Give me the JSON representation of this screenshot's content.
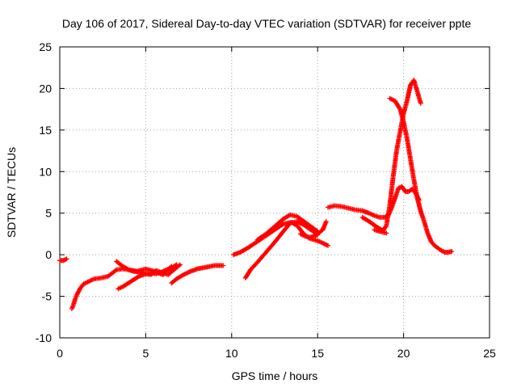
{
  "chart_data": {
    "type": "scatter",
    "title": "Day 106 of 2017, Sidereal Day-to-day VTEC variation (SDTVAR) for receiver ppte",
    "xlabel": "GPS time / hours",
    "ylabel": "SDTVAR / TECUs",
    "xlim": [
      0,
      25
    ],
    "ylim": [
      -10,
      25
    ],
    "xticks": [
      0,
      5,
      10,
      15,
      20,
      25
    ],
    "yticks": [
      -10,
      -5,
      0,
      5,
      10,
      15,
      20,
      25
    ],
    "grid": true,
    "legend": "none",
    "marker": "plus",
    "color": "#ff0000",
    "series": [
      {
        "x": [
          0.0,
          0.2,
          0.4
        ],
        "y": [
          -0.7,
          -0.7,
          -0.5
        ]
      },
      {
        "x": [
          0.7,
          0.8,
          0.9,
          1.0,
          1.2,
          1.4,
          1.7,
          2.0,
          2.4,
          2.8,
          3.0,
          3.3,
          3.7,
          4.0,
          4.3,
          4.7,
          5.0,
          5.3,
          5.6,
          6.0,
          6.3,
          6.7,
          7.0
        ],
        "y": [
          -6.5,
          -6.0,
          -5.3,
          -4.8,
          -4.0,
          -3.5,
          -3.2,
          -2.9,
          -2.8,
          -2.6,
          -2.3,
          -1.8,
          -1.7,
          -1.8,
          -2.0,
          -2.1,
          -2.3,
          -2.4,
          -1.9,
          -2.2,
          -2.4,
          -1.7,
          -1.2
        ]
      },
      {
        "x": [
          3.4,
          3.7,
          4.0,
          4.3,
          4.6,
          5.0,
          5.3,
          5.6,
          5.9,
          6.2,
          6.5,
          6.8
        ],
        "y": [
          -4.1,
          -3.8,
          -3.4,
          -3.0,
          -2.6,
          -2.3,
          -2.2,
          -2.3,
          -2.1,
          -1.8,
          -1.6,
          -1.2
        ]
      },
      {
        "x": [
          3.3,
          3.6,
          4.0,
          4.5,
          5.0,
          5.5,
          6.0,
          6.5
        ],
        "y": [
          -0.8,
          -1.3,
          -1.8,
          -2.0,
          -1.7,
          -2.0,
          -2.4,
          -1.4
        ]
      },
      {
        "x": [
          6.5,
          6.8,
          7.2,
          7.6,
          8.0,
          8.5,
          9.0,
          9.5
        ],
        "y": [
          -3.4,
          -2.9,
          -2.4,
          -2.0,
          -1.7,
          -1.5,
          -1.3,
          -1.3
        ]
      },
      {
        "x": [
          10.1,
          10.5,
          11.0,
          11.5,
          12.0,
          12.5,
          13.0,
          13.5,
          13.8,
          14.0,
          14.2,
          14.5,
          14.8,
          15.1,
          15.4,
          15.6
        ],
        "y": [
          0.0,
          0.3,
          0.9,
          1.6,
          2.3,
          3.0,
          3.7,
          3.9,
          3.5,
          3.0,
          2.5,
          2.0,
          1.8,
          1.6,
          1.3,
          1.1
        ]
      },
      {
        "x": [
          10.8,
          11.1,
          11.5,
          12.0,
          12.5,
          13.0,
          13.4,
          13.8,
          14.2,
          14.6,
          15.0,
          15.3,
          15.5
        ],
        "y": [
          -2.8,
          -1.8,
          -0.9,
          0.3,
          1.5,
          2.8,
          3.8,
          4.0,
          3.6,
          3.0,
          2.5,
          3.0,
          4.0
        ]
      },
      {
        "x": [
          11.5,
          12.0,
          12.5,
          13.0,
          13.4,
          13.8,
          14.2,
          14.6,
          15.0
        ],
        "y": [
          1.8,
          2.5,
          3.4,
          4.3,
          4.8,
          4.6,
          4.0,
          3.4,
          2.8
        ]
      },
      {
        "x": [
          14.0,
          14.3,
          14.6,
          15.0
        ],
        "y": [
          2.5,
          2.2,
          2.1,
          2.4
        ]
      },
      {
        "x": [
          15.6,
          16.0,
          16.4,
          16.8,
          17.2,
          17.6,
          18.0,
          18.3,
          18.6,
          18.9,
          19.1,
          19.3,
          19.5,
          19.7,
          19.9,
          20.1,
          20.3,
          20.5,
          20.7,
          20.9
        ],
        "y": [
          5.7,
          5.9,
          5.8,
          5.6,
          5.4,
          5.3,
          5.0,
          4.7,
          4.5,
          4.5,
          4.7,
          5.6,
          6.8,
          8.0,
          8.2,
          7.6,
          7.6,
          7.9,
          7.4,
          6.6
        ]
      },
      {
        "x": [
          17.6,
          18.0,
          18.4,
          18.8,
          19.0,
          19.2,
          19.4,
          19.6,
          19.8,
          20.0,
          20.2,
          20.4,
          20.6,
          20.8,
          21.0
        ],
        "y": [
          4.5,
          4.0,
          3.4,
          2.9,
          3.5,
          6.0,
          9.5,
          12.6,
          14.8,
          17.0,
          18.5,
          20.4,
          21.0,
          19.6,
          18.2
        ]
      },
      {
        "x": [
          18.3,
          18.6,
          19.0
        ],
        "y": [
          3.0,
          2.8,
          2.6
        ]
      },
      {
        "x": [
          19.2,
          19.5,
          19.8,
          20.0,
          20.2,
          20.4,
          20.6,
          20.8,
          21.0,
          21.2,
          21.4,
          21.6,
          21.8,
          22.0,
          22.2,
          22.4,
          22.6,
          22.8
        ],
        "y": [
          18.8,
          18.5,
          17.5,
          16.0,
          14.0,
          11.5,
          9.0,
          6.8,
          5.2,
          4.0,
          2.6,
          1.6,
          1.1,
          0.8,
          0.5,
          0.3,
          0.3,
          0.4
        ]
      }
    ]
  }
}
